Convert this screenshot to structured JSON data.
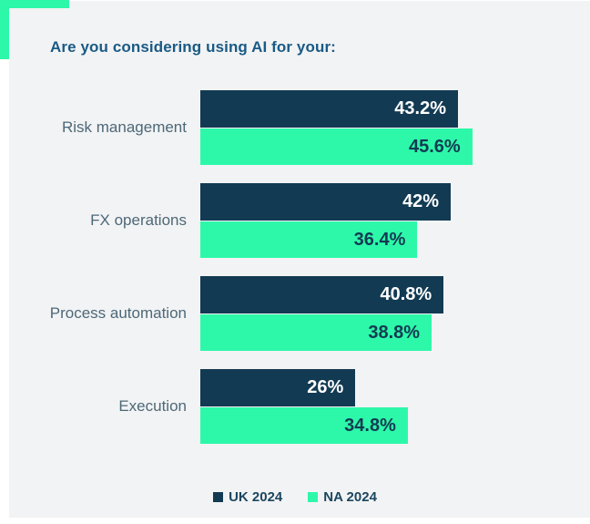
{
  "chart_data": {
    "type": "bar",
    "orientation": "horizontal",
    "title": "Are you considering using AI for your:",
    "categories": [
      "Risk management",
      "FX operations",
      "Process automation",
      "Execution"
    ],
    "series": [
      {
        "name": "UK 2024",
        "color": "#123a53",
        "label_color": "#ffffff",
        "values": [
          43.2,
          42,
          40.8,
          26
        ],
        "labels": [
          "43.2%",
          "42%",
          "40.8%",
          "26%"
        ]
      },
      {
        "name": "NA 2024",
        "color": "#2df8a9",
        "label_color": "#123a53",
        "values": [
          45.6,
          36.4,
          38.8,
          34.8
        ],
        "labels": [
          "45.6%",
          "36.4%",
          "38.8%",
          "34.8%"
        ]
      }
    ],
    "value_suffix": "%",
    "legend_position": "bottom",
    "grid": false
  },
  "colors": {
    "accent_green": "#2df8a9",
    "panel_background": "#f2f3f4",
    "page_background": "#ffffff",
    "title_text": "#1a5a85",
    "category_text": "#4d6878",
    "legend_text": "#1b465f"
  }
}
